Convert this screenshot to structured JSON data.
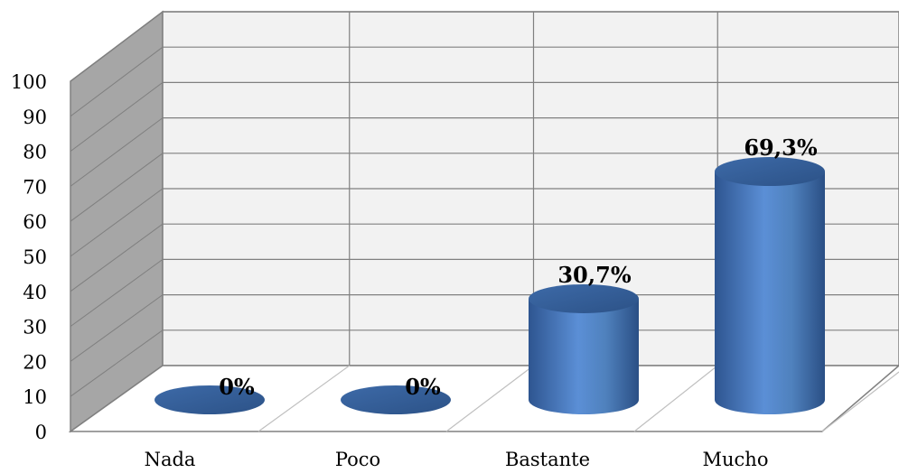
{
  "chart_data": {
    "type": "bar",
    "style": "3d-cylinder",
    "categories": [
      "Nada",
      "Poco",
      "Bastante",
      "Mucho"
    ],
    "values": [
      0,
      0,
      30.7,
      69.3
    ],
    "data_labels": [
      "0%",
      "0%",
      "30,7%",
      "69,3%"
    ],
    "y_ticks": [
      "0",
      "10",
      "20",
      "30",
      "40",
      "50",
      "60",
      "70",
      "80",
      "90",
      "100"
    ],
    "ylim": [
      0,
      100
    ],
    "grid": true,
    "legend": "none",
    "colors": {
      "bar": "#4f81bd",
      "bar_dark": "#2c5287",
      "bar_light": "#7fa8dc",
      "wall": "#f2f2f2",
      "side_wall": "#a6a6a6",
      "floor": "#ffffff",
      "grid": "#808080"
    }
  }
}
